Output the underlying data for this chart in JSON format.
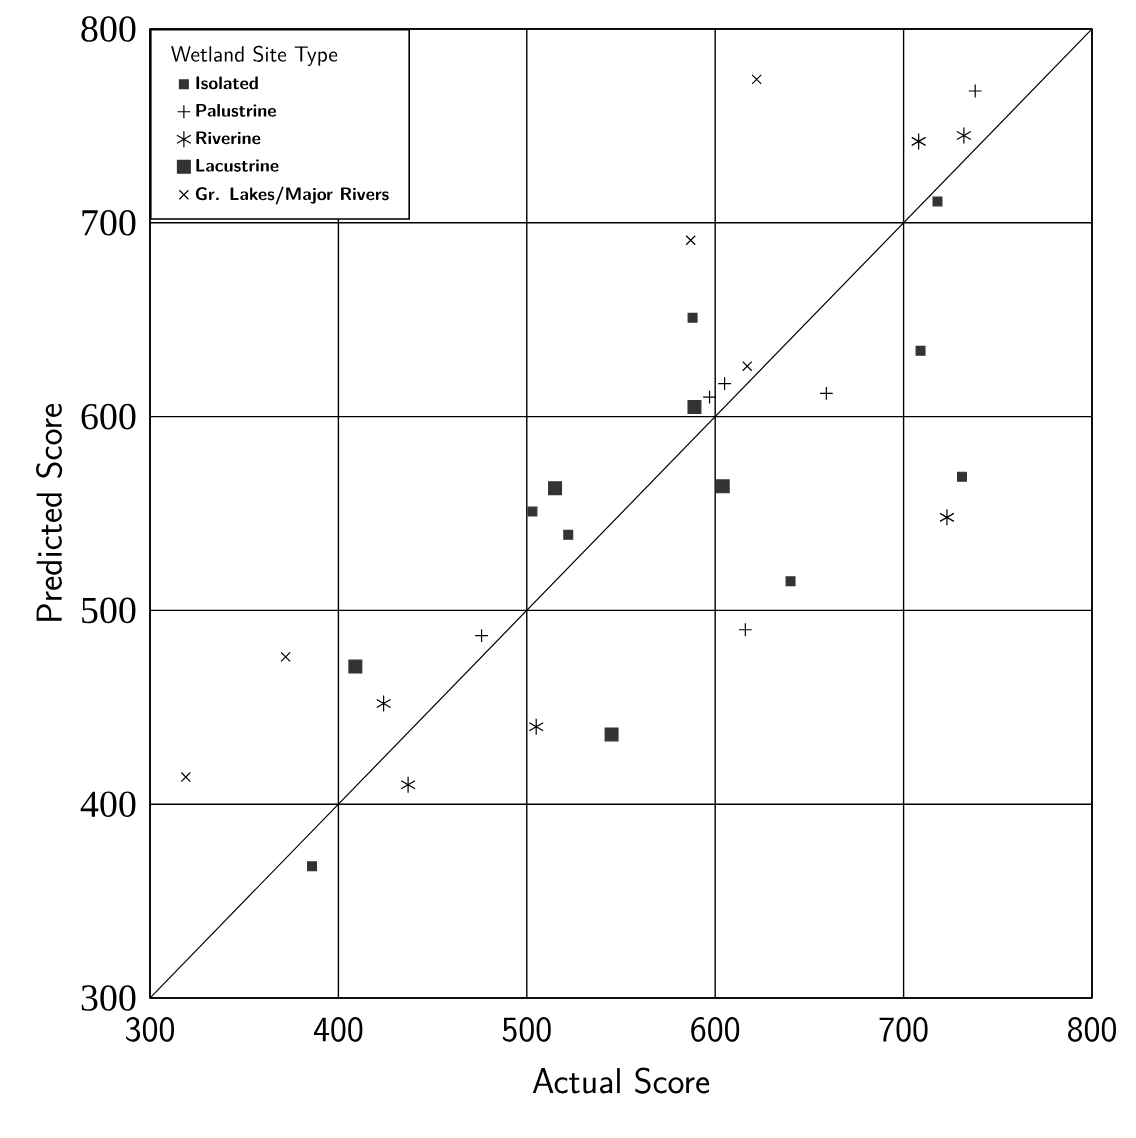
{
  "chart_data": {
    "type": "scatter",
    "xlabel": "Actual Score",
    "ylabel": "Predicted Score",
    "legend_title": "Wetland Site Type",
    "xlim": [
      300,
      800
    ],
    "ylim": [
      300,
      800
    ],
    "xticks": [
      300,
      400,
      500,
      600,
      700,
      800
    ],
    "yticks": [
      300,
      400,
      500,
      600,
      700,
      800
    ],
    "grid": true,
    "legend": "top left",
    "series": [
      {
        "name": "Isolated",
        "color": "#333333",
        "marker": "square",
        "x": [
          386,
          503,
          522,
          588,
          718,
          709,
          731,
          640
        ],
        "values": [
          368,
          551,
          539,
          651,
          711,
          634,
          569,
          515
        ]
      },
      {
        "name": "Palustrine",
        "color": "#000000",
        "marker": "cross",
        "x": [
          476,
          738,
          605,
          597,
          659,
          616
        ],
        "values": [
          487,
          768,
          617,
          610,
          612,
          490
        ]
      },
      {
        "name": "Riverine",
        "color": "#000000",
        "marker": "cross",
        "x": [
          424,
          437,
          505,
          708,
          732,
          723
        ],
        "values": [
          452,
          410,
          440,
          742,
          745,
          548
        ]
      },
      {
        "name": "Lacustrine",
        "color": "#333333",
        "marker": "square",
        "x": [
          409,
          545,
          515,
          589,
          604
        ],
        "values": [
          471,
          436,
          563,
          605,
          564
        ]
      },
      {
        "name": "Gr. Lakes/Major Rivers",
        "color": "#000000",
        "marker": "cross",
        "x": [
          319,
          372,
          622,
          587,
          617
        ],
        "values": [
          414,
          476,
          774,
          691,
          626
        ]
      },
      {
        "type": "line",
        "color": "#000000",
        "marker": "none",
        "x": [
          300,
          800
        ],
        "values": [
          300,
          800
        ]
      }
    ]
  }
}
